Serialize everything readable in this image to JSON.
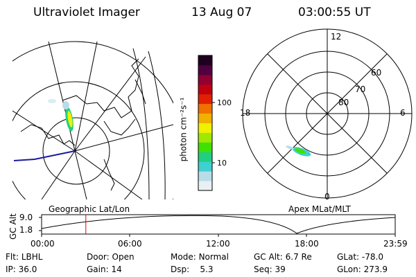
{
  "header": {
    "instrument": "Ultraviolet Imager",
    "date": "13 Aug 07",
    "time": "03:00:55 UT"
  },
  "colorbar": {
    "unit_label": "photon cm⁻²s⁻¹",
    "ticks": [
      "100",
      "10"
    ],
    "colors": [
      "#e8f0f4",
      "#b8dce8",
      "#40d0d0",
      "#20d080",
      "#40e000",
      "#a0e800",
      "#f0f000",
      "#f0b000",
      "#f07000",
      "#e02000",
      "#c00010",
      "#900030",
      "#500040",
      "#200020"
    ]
  },
  "left_map": {
    "label": "Geographic Lat/Lon"
  },
  "right_map": {
    "label": "Apex MLat/MLT",
    "mlt_labels": {
      "top": "12",
      "left": "18",
      "right": "6",
      "bottom": "0"
    },
    "lat_labels": [
      "60",
      "70",
      "80"
    ]
  },
  "alt_plot": {
    "ylabel": "GC Alt",
    "yticks": [
      "9.0",
      "1.8"
    ],
    "xticks": [
      "00:00",
      "06:00",
      "12:00",
      "18:00",
      "23:59"
    ],
    "cursor_hours": 3.0
  },
  "info": {
    "flt_label": "Flt:",
    "flt_value": "LBHL",
    "ip_label": "IP:",
    "ip_value": "36.0",
    "door_label": "Door:",
    "door_value": "Open",
    "gain_label": "Gain:",
    "gain_value": "14",
    "mode_label": "Mode:",
    "mode_value": "Normal",
    "dsp_label": "Dsp:",
    "dsp_value": "5.3",
    "gcalt_label": "GC Alt:",
    "gcalt_value": "6.7 Re",
    "seq_label": "Seq:",
    "seq_value": "39",
    "glat_label": "GLat:",
    "glat_value": "-78.0",
    "glon_label": "GLon:",
    "glon_value": "273.9"
  }
}
